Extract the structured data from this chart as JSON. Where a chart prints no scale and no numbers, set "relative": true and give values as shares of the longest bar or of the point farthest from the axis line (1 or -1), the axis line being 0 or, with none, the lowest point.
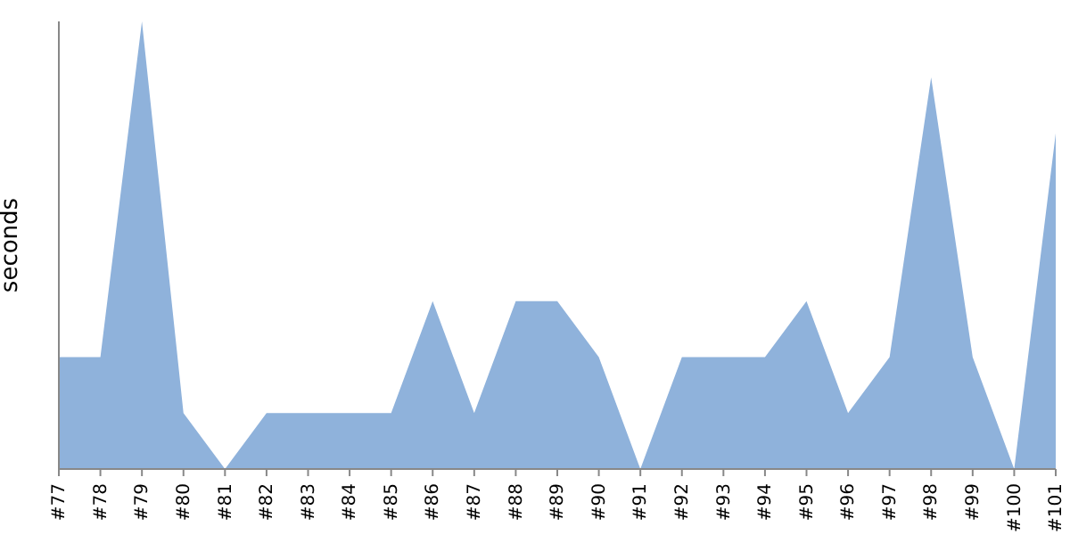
{
  "chart_data": {
    "type": "area",
    "ylabel": "seconds",
    "relative": true,
    "color": "#8fb2db",
    "categories": [
      "#77",
      "#78",
      "#79",
      "#80",
      "#81",
      "#82",
      "#83",
      "#84",
      "#85",
      "#86",
      "#87",
      "#88",
      "#89",
      "#90",
      "#91",
      "#92",
      "#93",
      "#94",
      "#95",
      "#96",
      "#97",
      "#98",
      "#99",
      "#100",
      "#101"
    ],
    "values": [
      0.25,
      0.25,
      1,
      0.125,
      0,
      0.125,
      0.125,
      0.125,
      0.125,
      0.375,
      0.125,
      0.375,
      0.375,
      0.25,
      0,
      0.25,
      0.25,
      0.25,
      0.375,
      0.125,
      0.25,
      0.875,
      0.25,
      0,
      0.75
    ]
  }
}
